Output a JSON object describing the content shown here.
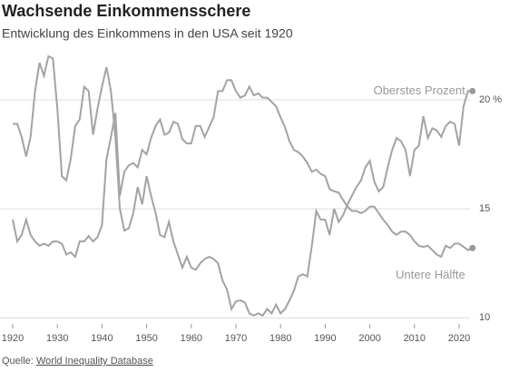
{
  "chart_data": {
    "type": "line",
    "title": "Wachsende Einkommensschere",
    "subtitle": "Entwicklung des Einkommens in den USA seit 1920",
    "source_label": "Quelle:",
    "source": "World Inequality Database",
    "x": [
      1920,
      1921,
      1922,
      1923,
      1924,
      1925,
      1926,
      1927,
      1928,
      1929,
      1930,
      1931,
      1932,
      1933,
      1934,
      1935,
      1936,
      1937,
      1938,
      1939,
      1940,
      1941,
      1942,
      1943,
      1944,
      1945,
      1946,
      1947,
      1948,
      1949,
      1950,
      1951,
      1952,
      1953,
      1954,
      1955,
      1956,
      1957,
      1958,
      1959,
      1960,
      1961,
      1962,
      1963,
      1964,
      1965,
      1966,
      1967,
      1968,
      1969,
      1970,
      1971,
      1972,
      1973,
      1974,
      1975,
      1976,
      1977,
      1978,
      1979,
      1980,
      1981,
      1982,
      1983,
      1984,
      1985,
      1986,
      1987,
      1988,
      1989,
      1990,
      1991,
      1992,
      1993,
      1994,
      1995,
      1996,
      1997,
      1998,
      1999,
      2000,
      2001,
      2002,
      2003,
      2004,
      2005,
      2006,
      2007,
      2008,
      2009,
      2010,
      2011,
      2012,
      2013,
      2014,
      2015,
      2016,
      2017,
      2018,
      2019,
      2020,
      2021,
      2022,
      2023
    ],
    "series": [
      {
        "name": "Oberstes Prozent",
        "color": "#a3a3a3",
        "values": [
          18.9,
          18.9,
          18.3,
          17.4,
          18.3,
          20.4,
          21.7,
          21.1,
          22.0,
          21.9,
          19.6,
          16.5,
          16.3,
          17.3,
          18.8,
          19.1,
          20.6,
          20.4,
          18.4,
          19.6,
          20.6,
          21.5,
          20.4,
          18.3,
          15.0,
          14.0,
          14.1,
          14.8,
          16.0,
          15.2,
          16.5,
          15.6,
          14.8,
          13.8,
          13.7,
          14.4,
          13.5,
          12.9,
          12.3,
          12.8,
          12.3,
          12.2,
          12.5,
          12.7,
          12.8,
          12.7,
          12.5,
          11.7,
          11.3,
          10.4,
          10.75,
          10.8,
          10.7,
          10.2,
          10.1,
          10.2,
          10.1,
          10.4,
          10.2,
          10.6,
          10.2,
          10.4,
          10.8,
          11.25,
          11.9,
          12.0,
          11.9,
          13.3,
          14.9,
          14.5,
          14.5,
          13.8,
          15.0,
          14.4,
          14.7,
          15.2,
          15.6,
          16.0,
          16.3,
          16.9,
          17.2,
          16.25,
          15.8,
          16.0,
          16.9,
          17.7,
          18.25,
          18.1,
          17.7,
          16.5,
          17.7,
          17.9,
          19.25,
          18.25,
          18.7,
          18.6,
          18.3,
          18.8,
          19.0,
          18.9,
          17.9,
          19.7,
          20.4,
          20.4
        ]
      },
      {
        "name": "Untere Hälfte",
        "color": "#a3a3a3",
        "values": [
          14.5,
          13.5,
          13.8,
          14.5,
          13.8,
          13.5,
          13.3,
          13.4,
          13.3,
          13.5,
          13.5,
          13.4,
          12.9,
          13.0,
          12.8,
          13.5,
          13.5,
          13.75,
          13.5,
          13.7,
          14.25,
          17.3,
          18.3,
          19.4,
          15.6,
          16.7,
          17.0,
          17.1,
          16.9,
          17.7,
          17.5,
          18.25,
          18.8,
          19.1,
          18.4,
          18.5,
          19.0,
          18.9,
          18.2,
          18.0,
          18.0,
          18.8,
          18.8,
          18.3,
          18.75,
          19.2,
          20.4,
          20.4,
          20.9,
          20.9,
          20.4,
          20.1,
          20.2,
          20.6,
          20.2,
          20.3,
          20.1,
          20.1,
          19.9,
          19.7,
          19.2,
          18.75,
          18.1,
          17.7,
          17.6,
          17.4,
          17.1,
          16.7,
          16.8,
          16.6,
          16.5,
          15.9,
          15.8,
          15.75,
          15.4,
          15.1,
          14.9,
          14.9,
          14.8,
          14.9,
          15.1,
          15.1,
          14.8,
          14.5,
          14.25,
          13.95,
          13.8,
          13.95,
          13.95,
          13.8,
          13.5,
          13.3,
          13.25,
          13.3,
          13.1,
          12.9,
          12.8,
          13.3,
          13.2,
          13.4,
          13.4,
          13.25,
          13.1,
          13.2
        ]
      }
    ],
    "xlim": [
      1918,
      2025
    ],
    "xticks": [
      1920,
      1930,
      1940,
      1950,
      1960,
      1970,
      1980,
      1990,
      2000,
      2010,
      2020
    ],
    "ylim": [
      9.8,
      22.5
    ],
    "yticks": [
      10,
      15,
      {
        "value": 20,
        "label": "20 %"
      }
    ],
    "grid": true
  }
}
